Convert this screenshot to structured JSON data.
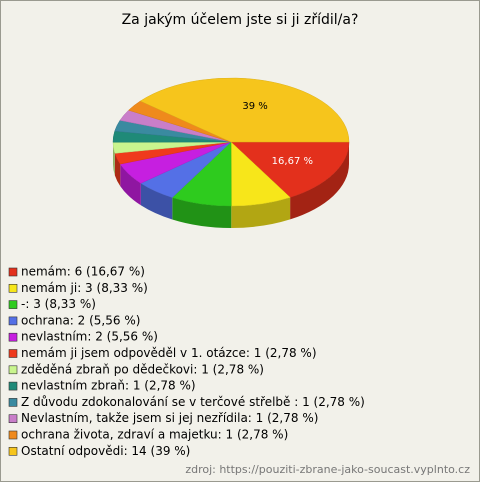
{
  "chart_data": {
    "type": "pie",
    "title": "Za jakým účelem jste si ji zřídil/a?",
    "categories": [
      "nemám: 6 (16,67 %)",
      "nemám ji: 3 (8,33 %)",
      "-: 3 (8,33 %)",
      "ochrana: 2 (5,56 %)",
      "nevlastním: 2 (5,56 %)",
      "nemám ji jsem odpověděl v 1. otázce: 1 (2,78 %)",
      "zděděná zbraň po dědečkovi: 1 (2,78 %)",
      "nevlastním zbraň: 1 (2,78 %)",
      "Z důvodu zdokonalování se v terčové střelbě : 1 (2,78 %)",
      "Nevlastním, takže jsem si jej nezřídila: 1 (2,78 %)",
      "ochrana života, zdraví a majetku: 1 (2,78 %)",
      "Ostatní odpovědi: 14 (39 %)"
    ],
    "values": [
      16.67,
      8.33,
      8.33,
      5.56,
      5.56,
      2.78,
      2.78,
      2.78,
      2.78,
      2.78,
      2.78,
      39
    ],
    "value_labels": [
      "16,67 %",
      null,
      null,
      null,
      null,
      null,
      null,
      null,
      null,
      null,
      null,
      "39 %"
    ],
    "colors": [
      "#e3301c",
      "#f7e61a",
      "#2ecb1e",
      "#5470e6",
      "#c61fe0",
      "#ef3a1c",
      "#c9f58e",
      "#1f8a78",
      "#3a8aa0",
      "#c97ec9",
      "#ef8a1c",
      "#f6c51c"
    ],
    "source": "zdroj: https://pouziti-zbrane-jako-soucast.vyplnto.cz"
  }
}
